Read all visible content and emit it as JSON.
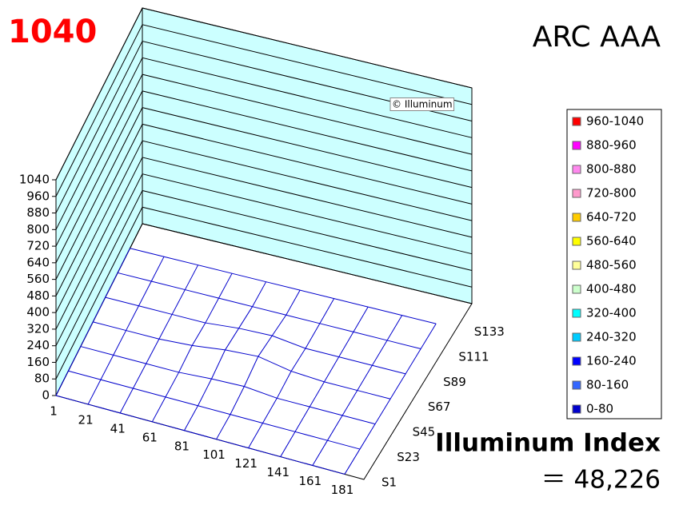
{
  "chart_data": {
    "type": "surface",
    "title": "ARC AAA",
    "annotations": {
      "max_label": "1040",
      "watermark": "© Illuminum",
      "index_label": "Illuminum Index",
      "index_value": "＝ 48,226"
    },
    "x": [
      1,
      21,
      41,
      61,
      81,
      101,
      121,
      141,
      161,
      181
    ],
    "xlim": [
      1,
      193
    ],
    "ylim": [
      0,
      1040
    ],
    "yticks": [
      0,
      80,
      160,
      240,
      320,
      400,
      480,
      560,
      640,
      720,
      800,
      880,
      960,
      1040
    ],
    "color": "#0000cc",
    "wall_color": "#ccffff",
    "series": [
      {
        "name": "S1",
        "values": [
          0,
          0,
          0,
          0,
          0,
          0,
          0,
          0,
          0,
          0
        ]
      },
      {
        "name": "S23",
        "values": [
          0,
          0,
          0,
          0,
          0,
          0,
          0,
          0,
          0,
          0
        ]
      },
      {
        "name": "S45",
        "values": [
          0,
          0,
          0,
          0,
          10,
          15,
          0,
          0,
          0,
          0
        ]
      },
      {
        "name": "S67",
        "values": [
          0,
          0,
          0,
          10,
          30,
          40,
          10,
          0,
          0,
          0
        ]
      },
      {
        "name": "S89",
        "values": [
          0,
          0,
          0,
          0,
          15,
          20,
          0,
          0,
          0,
          0
        ]
      },
      {
        "name": "S111",
        "values": [
          0,
          0,
          0,
          0,
          0,
          0,
          0,
          0,
          0,
          0
        ]
      },
      {
        "name": "S133",
        "values": [
          0,
          0,
          0,
          0,
          0,
          0,
          0,
          0,
          0,
          0
        ]
      }
    ],
    "legend": {
      "position": "right",
      "entries": [
        {
          "label": "960-1040",
          "color": "#ff0000"
        },
        {
          "label": "880-960",
          "color": "#ff00ff"
        },
        {
          "label": "800-880",
          "color": "#ff88ee"
        },
        {
          "label": "720-800",
          "color": "#ff99cc"
        },
        {
          "label": "640-720",
          "color": "#ffcc00"
        },
        {
          "label": "560-640",
          "color": "#ffff00"
        },
        {
          "label": "480-560",
          "color": "#ffff99"
        },
        {
          "label": "400-480",
          "color": "#ccffcc"
        },
        {
          "label": "320-400",
          "color": "#00ffff"
        },
        {
          "label": "240-320",
          "color": "#00ccff"
        },
        {
          "label": "160-240",
          "color": "#0000ff"
        },
        {
          "label": "80-160",
          "color": "#3366ff"
        },
        {
          "label": "0-80",
          "color": "#0000cc"
        }
      ]
    }
  }
}
